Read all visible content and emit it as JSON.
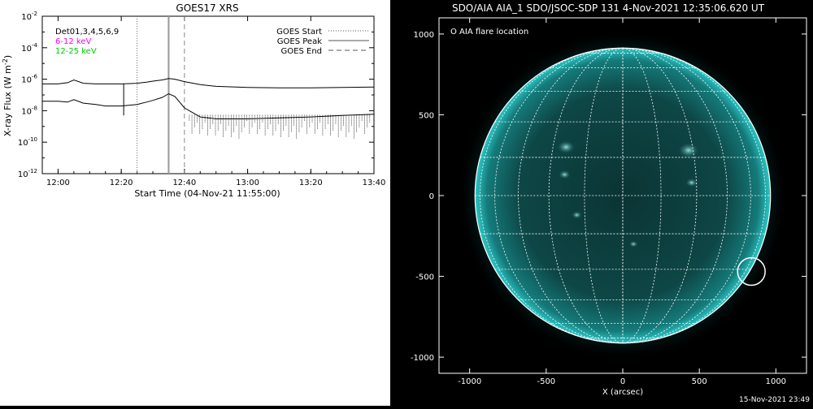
{
  "footer": {
    "timestamp": "15-Nov-2021 23:49"
  },
  "chart_data": [
    {
      "type": "line",
      "title": "GOES17 XRS",
      "xlabel": "Start Time (04-Nov-21 11:55:00)",
      "ylabel_text": "X-ray Flux (W m",
      "ylabel_exp": "-2",
      "ylabel_close": ")",
      "y_scale": "log",
      "ylim": [
        1e-12,
        0.01
      ],
      "y_tick_labels": [
        {
          "value": 0.01,
          "base": "10",
          "exp": "-2"
        },
        {
          "value": 0.0001,
          "base": "10",
          "exp": "-4"
        },
        {
          "value": 1e-06,
          "base": "10",
          "exp": "-6"
        },
        {
          "value": 1e-08,
          "base": "10",
          "exp": "-8"
        },
        {
          "value": 1e-10,
          "base": "10",
          "exp": "-10"
        },
        {
          "value": 1e-12,
          "base": "10",
          "exp": "-12"
        }
      ],
      "x_time_range": [
        "11:55",
        "13:40"
      ],
      "x_tick_labels": [
        "12:00",
        "12:20",
        "12:40",
        "13:00",
        "13:20",
        "13:40"
      ],
      "legend_left": [
        {
          "text": "Det01,3,4,5,6,9",
          "color": "#000000"
        },
        {
          "text": "6-12 keV",
          "color": "#ff00ff"
        },
        {
          "text": "12-25 keV",
          "color": "#00cc00"
        }
      ],
      "legend_right": [
        {
          "text": "GOES Start",
          "style": "dotted"
        },
        {
          "text": "GOES Peak",
          "style": "solid"
        },
        {
          "text": "GOES End",
          "style": "dashed"
        }
      ],
      "markers": {
        "start": "12:25",
        "peak": "12:35",
        "end": "12:40"
      },
      "series": [
        {
          "band": "long",
          "x": [
            "11:55",
            "12:00",
            "12:03",
            "12:05",
            "12:08",
            "12:12",
            "12:15",
            "12:20",
            "12:25",
            "12:28",
            "12:30",
            "12:33",
            "12:35",
            "12:37",
            "12:40",
            "12:45",
            "12:50",
            "13:00",
            "13:10",
            "13:20",
            "13:30",
            "13:40"
          ],
          "y": [
            5e-07,
            5e-07,
            6e-07,
            9e-07,
            5.5e-07,
            5e-07,
            5e-07,
            5e-07,
            5.5e-07,
            6.5e-07,
            7.5e-07,
            9e-07,
            1.1e-06,
            1e-06,
            7e-07,
            4.5e-07,
            3.5e-07,
            3e-07,
            2.8e-07,
            2.8e-07,
            3e-07,
            3.2e-07
          ]
        },
        {
          "band": "short",
          "x": [
            "11:55",
            "12:00",
            "12:03",
            "12:05",
            "12:08",
            "12:12",
            "12:15",
            "12:20",
            "12:25",
            "12:28",
            "12:30",
            "12:33",
            "12:35",
            "12:37",
            "12:40",
            "12:45",
            "12:50",
            "13:00",
            "13:10",
            "13:20",
            "13:30",
            "13:40"
          ],
          "y": [
            4e-08,
            4e-08,
            3.5e-08,
            5e-08,
            3e-08,
            2.5e-08,
            2e-08,
            2e-08,
            2.5e-08,
            3.5e-08,
            4.5e-08,
            7e-08,
            1.2e-07,
            8e-08,
            1.5e-08,
            4e-09,
            3e-09,
            3e-09,
            3.5e-09,
            4e-09,
            5e-09,
            6e-09
          ]
        }
      ]
    },
    {
      "type": "image",
      "title": "SDO/AIA AIA_1 SDO/JSOC-SDP 131  4-Nov-2021 12:35:06.620 UT",
      "xlabel": "X (arcsec)",
      "xlim": [
        -1200,
        1200
      ],
      "ylim": [
        -1100,
        1100
      ],
      "x_tick_labels": [
        -1000,
        -500,
        0,
        500,
        1000
      ],
      "y_tick_labels": [
        1000,
        500,
        0,
        -500,
        -1000
      ],
      "legend": "O AIA flare location",
      "disk_radius_arcsec": 965,
      "grid_spacing_deg": 15,
      "flare_location": {
        "x": 840,
        "y": -470,
        "radius": 90
      },
      "colors": {
        "disk": "#0a3a3a",
        "limb": "#1fb5b5",
        "grid": "#ffffff",
        "background": "#000000"
      }
    }
  ]
}
